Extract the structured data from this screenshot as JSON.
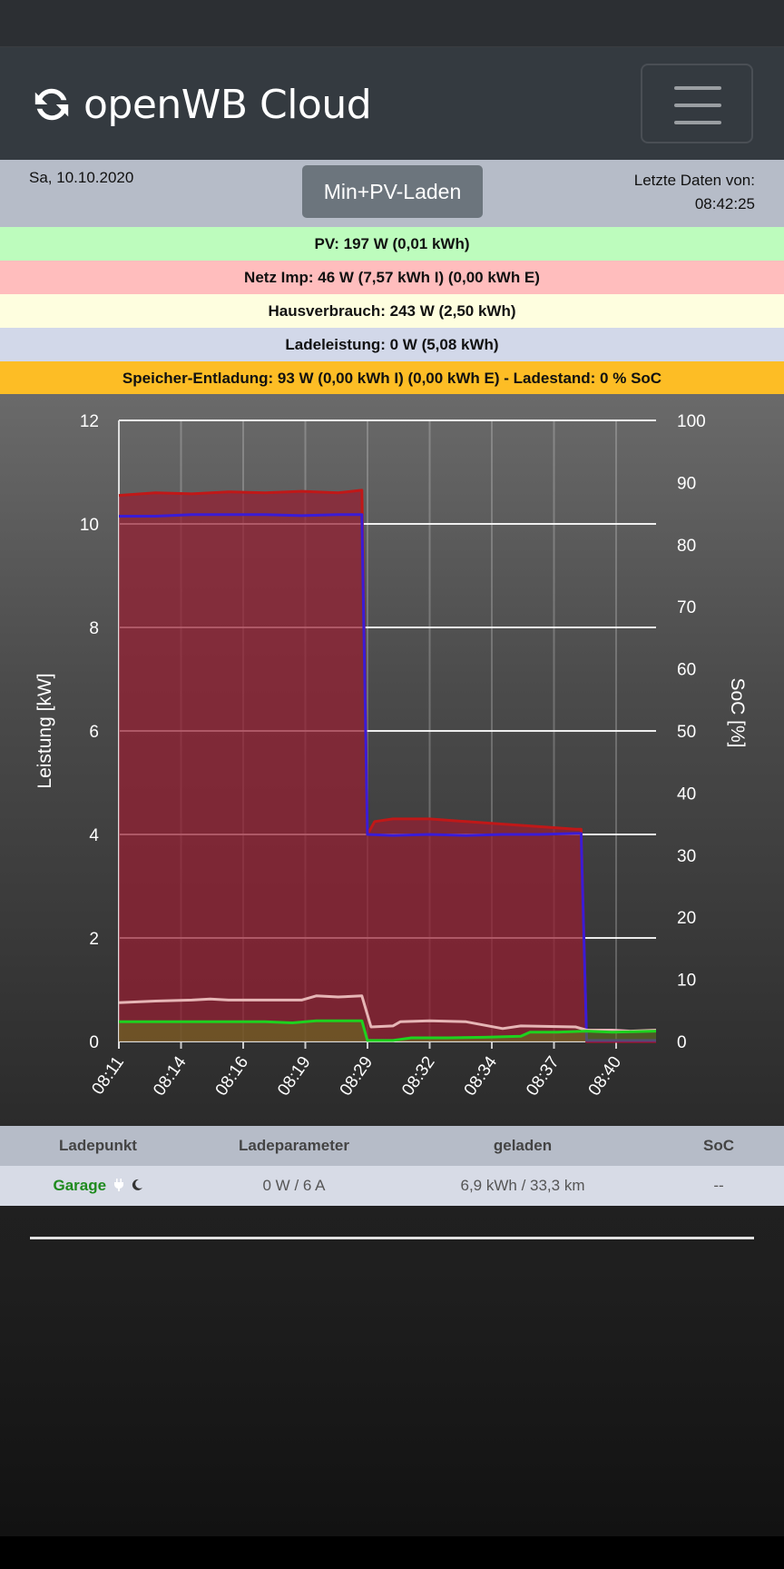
{
  "app": {
    "title": "openWB Cloud"
  },
  "info": {
    "date": "Sa, 10.10.2020",
    "mode_button": "Min+PV-Laden",
    "last_data_label": "Letzte Daten von:",
    "last_data_time": "08:42:25"
  },
  "stats": {
    "pv": "PV: 197 W (0,01 kWh)",
    "grid": "Netz Imp: 46 W (7,57 kWh I) (0,00 kWh E)",
    "house": "Hausverbrauch: 243 W (2,50 kWh)",
    "charge": "Ladeleistung: 0 W (5,08 kWh)",
    "storage": "Speicher-Entladung: 93 W (0,00 kWh I) (0,00 kWh E)  - Ladestand: 0 % SoC"
  },
  "colors": {
    "pv_bg": "#bdfcbd",
    "grid_bg": "#ffbdbd",
    "house_bg": "#fefedf",
    "charge_bg": "#d2d8e9",
    "storage_bg": "#fdbd25",
    "grid_line": "#c01818",
    "charge_line": "#3a1cd6",
    "house_line": "#e6b6b6",
    "pv_line": "#1ed21e"
  },
  "chart_data": {
    "type": "area",
    "ylabel": "Leistung [kW]",
    "y2label": "SoC [%]",
    "ylim": [
      0,
      12
    ],
    "y2lim": [
      0,
      100
    ],
    "yticks": [
      "0",
      "2",
      "4",
      "6",
      "8",
      "10",
      "12"
    ],
    "y2ticks": [
      "0",
      "10",
      "20",
      "30",
      "40",
      "50",
      "60",
      "70",
      "80",
      "90",
      "100"
    ],
    "xticks": [
      "08:11",
      "08:14",
      "08:16",
      "08:19",
      "08:29",
      "08:32",
      "08:34",
      "08:37",
      "08:40"
    ],
    "x_range_min": [
      0,
      29.4
    ],
    "series": [
      {
        "name": "Netz",
        "points": [
          [
            0,
            10.55
          ],
          [
            2,
            10.6
          ],
          [
            4,
            10.58
          ],
          [
            6,
            10.62
          ],
          [
            8,
            10.6
          ],
          [
            10,
            10.63
          ],
          [
            12,
            10.6
          ],
          [
            13.3,
            10.65
          ],
          [
            13.6,
            4.0
          ],
          [
            14,
            4.25
          ],
          [
            15,
            4.3
          ],
          [
            17,
            4.3
          ],
          [
            19,
            4.25
          ],
          [
            21,
            4.2
          ],
          [
            23,
            4.15
          ],
          [
            25,
            4.1
          ],
          [
            25.3,
            4.1
          ],
          [
            25.6,
            0.0
          ],
          [
            29.4,
            0.0
          ]
        ]
      },
      {
        "name": "Ladeleistung",
        "points": [
          [
            0,
            10.15
          ],
          [
            2,
            10.15
          ],
          [
            4,
            10.18
          ],
          [
            6,
            10.18
          ],
          [
            8,
            10.18
          ],
          [
            10,
            10.16
          ],
          [
            12,
            10.18
          ],
          [
            13.3,
            10.18
          ],
          [
            13.6,
            4.0
          ],
          [
            15,
            3.98
          ],
          [
            17,
            4.0
          ],
          [
            19,
            3.98
          ],
          [
            21,
            4.0
          ],
          [
            23,
            4.0
          ],
          [
            25,
            4.02
          ],
          [
            25.3,
            4.02
          ],
          [
            25.6,
            0.02
          ],
          [
            29.4,
            0.02
          ]
        ]
      },
      {
        "name": "Hausverbrauch",
        "points": [
          [
            0,
            0.75
          ],
          [
            2,
            0.78
          ],
          [
            4,
            0.8
          ],
          [
            5,
            0.82
          ],
          [
            6,
            0.8
          ],
          [
            8,
            0.8
          ],
          [
            10,
            0.8
          ],
          [
            10.8,
            0.88
          ],
          [
            12,
            0.86
          ],
          [
            13.3,
            0.88
          ],
          [
            13.8,
            0.28
          ],
          [
            15,
            0.3
          ],
          [
            15.4,
            0.38
          ],
          [
            17,
            0.4
          ],
          [
            19,
            0.38
          ],
          [
            21,
            0.25
          ],
          [
            22,
            0.3
          ],
          [
            25,
            0.28
          ],
          [
            25.6,
            0.22
          ],
          [
            27,
            0.22
          ],
          [
            28,
            0.2
          ],
          [
            29.4,
            0.22
          ]
        ]
      },
      {
        "name": "PV",
        "points": [
          [
            0,
            0.38
          ],
          [
            2,
            0.38
          ],
          [
            4,
            0.38
          ],
          [
            6,
            0.38
          ],
          [
            8,
            0.38
          ],
          [
            9.5,
            0.36
          ],
          [
            10.8,
            0.4
          ],
          [
            12,
            0.4
          ],
          [
            13.3,
            0.4
          ],
          [
            13.6,
            0.02
          ],
          [
            15,
            0.02
          ],
          [
            16,
            0.07
          ],
          [
            18,
            0.07
          ],
          [
            20,
            0.08
          ],
          [
            22,
            0.1
          ],
          [
            22.5,
            0.18
          ],
          [
            24,
            0.18
          ],
          [
            25.6,
            0.2
          ],
          [
            27,
            0.18
          ],
          [
            29.4,
            0.2
          ]
        ]
      }
    ]
  },
  "table": {
    "headers": [
      "Ladepunkt",
      "Ladeparameter",
      "geladen",
      "SoC"
    ],
    "rows": [
      {
        "name": "Garage",
        "params": "0 W / 6 A",
        "charged": "6,9 kWh / 33,3 km",
        "soc": "--"
      }
    ]
  }
}
